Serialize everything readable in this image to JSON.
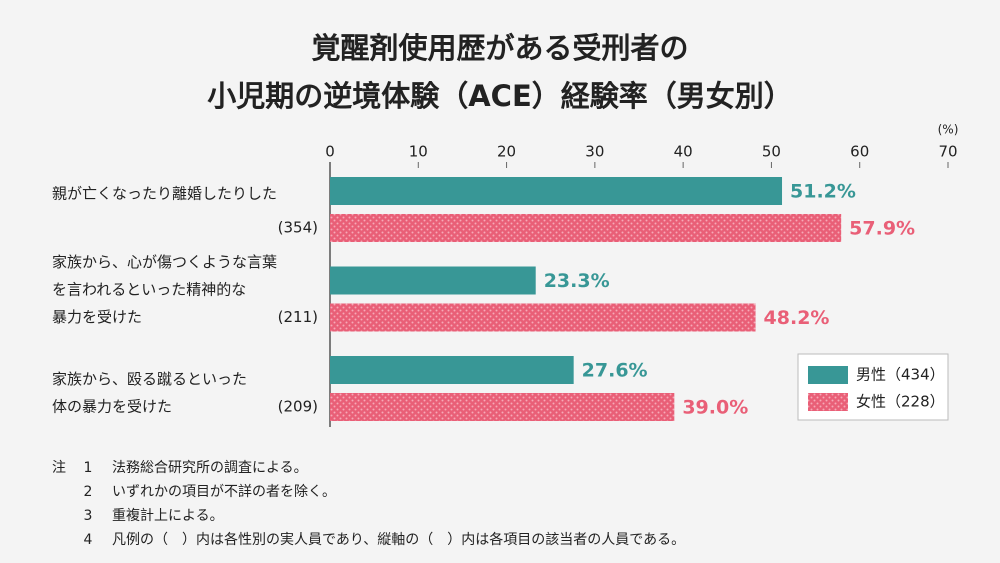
{
  "chart_data": {
    "type": "bar",
    "orientation": "horizontal",
    "title": [
      "覚醒剤使用歴がある受刑者の",
      "小児期の逆境体験（ACE）経験率（男女別）"
    ],
    "unit": "(%)",
    "categories": [
      [
        "親が亡くなったり離婚したりした"
      ],
      [
        "家族から、心が傷つくような言葉",
        "を言われるといった精神的な",
        "暴力を受けた"
      ],
      [
        "家族から、殴る蹴るといった",
        "体の暴力を受けた"
      ]
    ],
    "category_counts": [
      "(354)",
      "(211)",
      "(209)"
    ],
    "series": [
      {
        "name": "男性（434）",
        "color": "#389796",
        "values": [
          51.2,
          23.3,
          27.6
        ],
        "value_labels": [
          "51.2%",
          "23.3%",
          "27.6%"
        ]
      },
      {
        "name": "女性（228）",
        "color": "#e95f77",
        "pattern": "dots",
        "values": [
          57.9,
          48.2,
          39.0
        ],
        "value_labels": [
          "57.9%",
          "48.2%",
          "39.0%"
        ]
      }
    ],
    "xlim": [
      0,
      70
    ],
    "xticks": [
      0,
      10,
      20,
      30,
      40,
      50,
      60,
      70
    ],
    "grid": false,
    "legend": "lower right"
  },
  "notes": {
    "label": "注",
    "items": [
      {
        "number": "1",
        "text": "法務総合研究所の調査による。"
      },
      {
        "number": "2",
        "text": "いずれかの項目が不詳の者を除く。"
      },
      {
        "number": "3",
        "text": "重複計上による。"
      },
      {
        "number": "4",
        "text": "凡例の（　）内は各性別の実人員であり、縦軸の（　）内は各項目の該当者の人員である。"
      }
    ]
  }
}
